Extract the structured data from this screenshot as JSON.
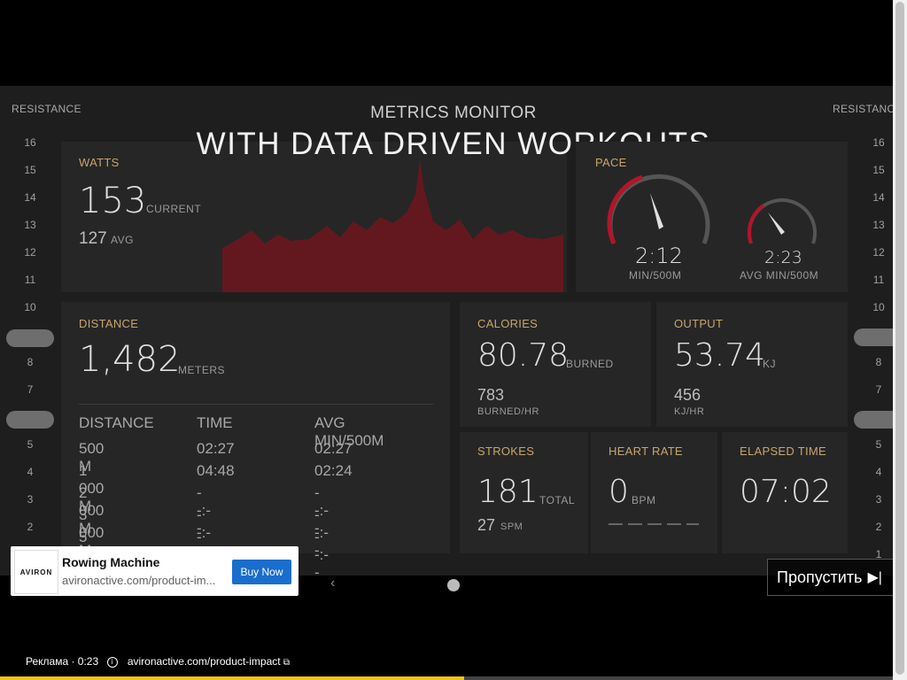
{
  "video": {
    "title_line1": "METRICS MONITOR",
    "title_line2": "WITH DATA DRIVEN WORKOUTS",
    "resistance_label": "RESISTANCE",
    "resistance_levels_left": [
      "16",
      "15",
      "14",
      "13",
      "12",
      "11",
      "10",
      "",
      "8",
      "7",
      "",
      "5",
      "4",
      "3",
      "2"
    ],
    "resistance_levels_right": [
      "16",
      "15",
      "14",
      "13",
      "12",
      "11",
      "10",
      "",
      "8",
      "7",
      "",
      "5",
      "4",
      "3",
      "2",
      "1"
    ],
    "watts": {
      "label": "WATTS",
      "current": "153",
      "current_unit": "CURRENT",
      "avg": "127",
      "avg_unit": "AVG"
    },
    "pace": {
      "label": "PACE",
      "value": "2:12",
      "unit": "MIN/500M",
      "avg_value": "2:23",
      "avg_unit": "AVG MIN/500M"
    },
    "distance": {
      "label": "DISTANCE",
      "value": "1,482",
      "unit": "METERS"
    },
    "splits": {
      "headers": [
        "DISTANCE",
        "TIME",
        "AVG MIN/500M"
      ],
      "rows": [
        [
          "500 M",
          "02:27",
          "02:27"
        ],
        [
          "1 000 M",
          "04:48",
          "02:24"
        ],
        [
          "2 000 M",
          "--:--",
          "--:--"
        ],
        [
          "3 000 M",
          "--:--",
          "--:--"
        ],
        [
          "5 000 M",
          "--:--",
          "--:--"
        ]
      ]
    },
    "calories": {
      "label": "CALORIES",
      "value": "80.78",
      "unit": "BURNED",
      "rate": "783",
      "rate_unit": "BURNED/HR"
    },
    "output": {
      "label": "OUTPUT",
      "value": "53.74",
      "unit": "KJ",
      "rate": "456",
      "rate_unit": "KJ/HR"
    },
    "strokes": {
      "label": "STROKES",
      "value": "181",
      "unit": "TOTAL",
      "spm": "27",
      "spm_unit": "SPM"
    },
    "heart_rate": {
      "label": "HEART RATE",
      "value": "0",
      "unit": "BPM"
    },
    "elapsed": {
      "label": "ELAPSED TIME",
      "value": "07:02"
    }
  },
  "ad": {
    "logo_text": "AVIRON",
    "title": "Rowing Machine",
    "url": "avironactive.com/product-im...",
    "button": "Buy Now",
    "skip": "Пропустить",
    "footer_label": "Реклама · 0:23",
    "footer_url": "avironactive.com/product-impact",
    "progress": 0.52
  },
  "colors": {
    "accent": "#c9a56a",
    "chart": "#8b1a24",
    "gauge": "#b3142a",
    "progress": "#f1c40f"
  }
}
